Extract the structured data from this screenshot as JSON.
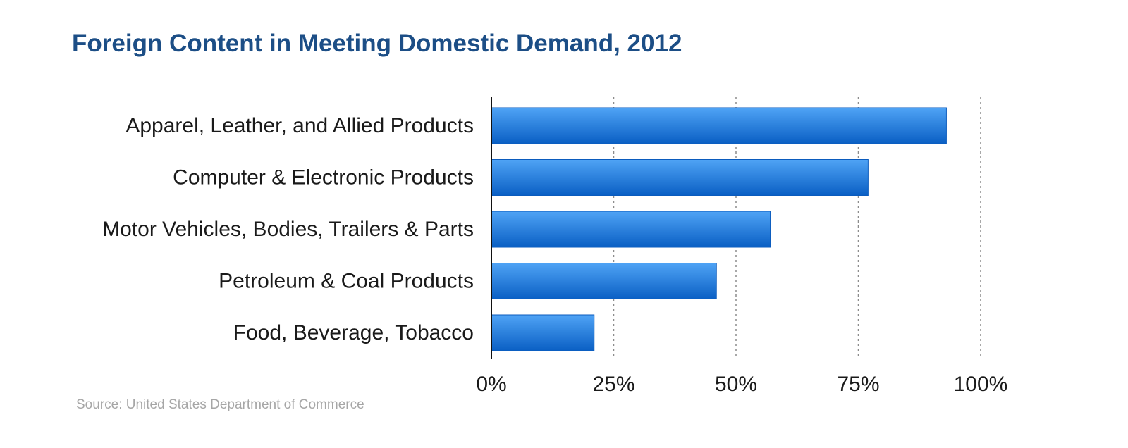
{
  "chart_data": {
    "type": "bar",
    "orientation": "horizontal",
    "title": "Foreign Content in Meeting Domestic Demand, 2012",
    "categories": [
      "Apparel, Leather, and Allied Products",
      "Computer & Electronic Products",
      "Motor Vehicles, Bodies, Trailers & Parts",
      "Petroleum & Coal Products",
      "Food, Beverage, Tobacco"
    ],
    "values": [
      93,
      77,
      57,
      46,
      21
    ],
    "value_unit": "%",
    "xlim": [
      0,
      100
    ],
    "xticks": [
      0,
      25,
      50,
      75,
      100
    ],
    "xtick_labels": [
      "0%",
      "25%",
      "50%",
      "75%",
      "100%"
    ],
    "xlabel": "",
    "ylabel": "",
    "grid": "vertical dotted",
    "legend": "none",
    "source": "Source: United States Department of Commerce"
  },
  "colors": {
    "bar_top": "#4fa3f5",
    "bar_bottom": "#0a5fc4",
    "bar_edge": "#0b5bbd",
    "title": "#1c4e86",
    "grid": "#8c8c8c",
    "axis": "#111111",
    "source": "#a6a6a6"
  }
}
